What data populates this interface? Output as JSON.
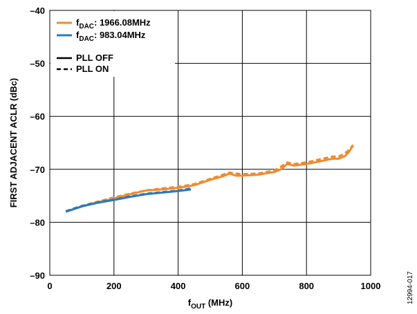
{
  "chart_data": {
    "type": "line",
    "xlabel": {
      "base": "f",
      "sub": "OUT",
      "rest": " (MHz)"
    },
    "ylabel": "FIRST ADJACENT ACLR (dBc)",
    "xlim": [
      0,
      1000
    ],
    "ylim": [
      -90,
      -40
    ],
    "xticks": [
      0,
      200,
      400,
      600,
      800,
      1000
    ],
    "yticks": [
      -40,
      -50,
      -60,
      -70,
      -80,
      -90
    ],
    "xtick_labels": [
      "0",
      "200",
      "400",
      "600",
      "800",
      "1000"
    ],
    "ytick_labels": [
      "–40",
      "–50",
      "–60",
      "–70",
      "–80",
      "–90"
    ],
    "grid": true,
    "legend_position": "top-left",
    "legend": {
      "series": [
        {
          "base": "f",
          "sub": "DAC",
          "rest": ": 1966.08MHz",
          "color": "#F08A2E"
        },
        {
          "base": "f",
          "sub": "DAC",
          "rest": ": 983.04MHz",
          "color": "#2B7BB9"
        }
      ],
      "styles": [
        {
          "label": "PLL OFF",
          "dash": "solid"
        },
        {
          "label": "PLL ON",
          "dash": "dashed"
        }
      ]
    },
    "series": [
      {
        "name": "fDAC: 1966.08MHz, PLL OFF",
        "color": "#F08A2E",
        "dash": "solid",
        "x": [
          50,
          75,
          100,
          150,
          200,
          250,
          300,
          325,
          350,
          400,
          450,
          500,
          540,
          560,
          580,
          600,
          650,
          700,
          720,
          740,
          760,
          800,
          850,
          880,
          900,
          920,
          935,
          945
        ],
        "y": [
          -78,
          -77.5,
          -77,
          -76.2,
          -75.5,
          -74.7,
          -74,
          -73.9,
          -73.8,
          -73.5,
          -73,
          -72,
          -71.3,
          -70.8,
          -71.2,
          -71.2,
          -71,
          -70.5,
          -70,
          -69,
          -69.3,
          -69,
          -68.4,
          -68,
          -68,
          -67.5,
          -66.5,
          -65.5
        ]
      },
      {
        "name": "fDAC: 1966.08MHz, PLL ON",
        "color": "#F08A2E",
        "dash": "dashed",
        "x": [
          50,
          75,
          100,
          150,
          200,
          250,
          300,
          325,
          350,
          400,
          450,
          500,
          540,
          560,
          580,
          600,
          650,
          700,
          720,
          740,
          760,
          800,
          850,
          880,
          900,
          920,
          935,
          945
        ],
        "y": [
          -78,
          -77.4,
          -76.9,
          -76.1,
          -75.3,
          -74.6,
          -74,
          -73.8,
          -73.6,
          -73.3,
          -72.8,
          -71.8,
          -71,
          -70.6,
          -70.8,
          -70.9,
          -70.8,
          -70.2,
          -69.5,
          -68.7,
          -69,
          -68.7,
          -68,
          -67.6,
          -67.6,
          -67,
          -66.2,
          -65.4
        ]
      },
      {
        "name": "fDAC: 983.04MHz, PLL OFF",
        "color": "#2B7BB9",
        "dash": "solid",
        "x": [
          50,
          75,
          100,
          150,
          200,
          250,
          300,
          350,
          400,
          440
        ],
        "y": [
          -78,
          -77.5,
          -77,
          -76.3,
          -75.8,
          -75.2,
          -74.7,
          -74.4,
          -74.1,
          -73.8
        ]
      },
      {
        "name": "fDAC: 983.04MHz, PLL ON",
        "color": "#2B7BB9",
        "dash": "dashed",
        "x": [
          50,
          75,
          100,
          150,
          200,
          250,
          300,
          350,
          400,
          440
        ],
        "y": [
          -77.9,
          -77.4,
          -76.9,
          -76.2,
          -75.7,
          -75.1,
          -74.6,
          -74.3,
          -74,
          -73.6
        ]
      }
    ],
    "figure_id": "12994-017"
  }
}
